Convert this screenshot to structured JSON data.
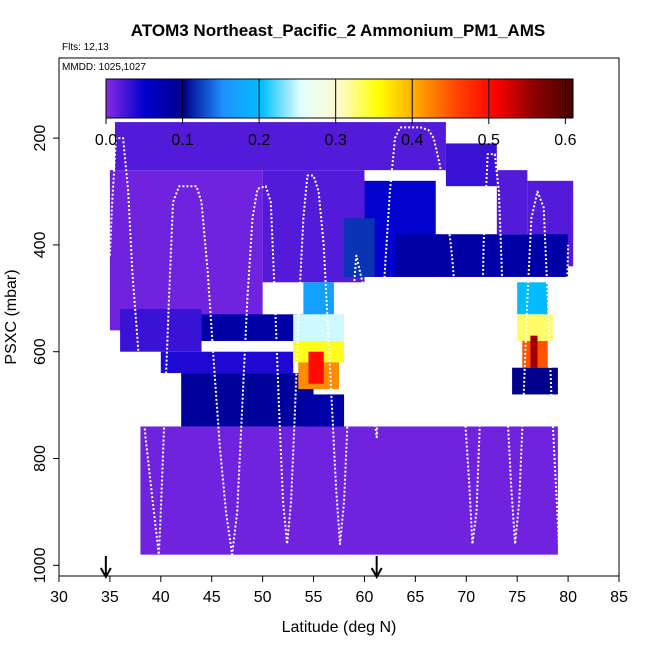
{
  "chart_data": {
    "type": "heatmap",
    "title": "ATOM3 Northeast_Pacific_2 Ammonium_PM1_AMS",
    "flights_label": "Flts: 12,13",
    "mmdd_label": "MMDD: 1025,1027",
    "xlabel": "Latitude (deg N)",
    "ylabel": "PSXC (mbar)",
    "xlim": [
      30,
      85
    ],
    "ylim": [
      1020,
      50
    ],
    "x_ticks": [
      "30",
      "35",
      "40",
      "45",
      "50",
      "55",
      "60",
      "65",
      "70",
      "75",
      "80",
      "85"
    ],
    "x_tick_values": [
      30,
      35,
      40,
      45,
      50,
      55,
      60,
      65,
      70,
      75,
      80,
      85
    ],
    "y_ticks": [
      "200",
      "400",
      "600",
      "800",
      "1000"
    ],
    "y_tick_values": [
      200,
      400,
      600,
      800,
      1000
    ],
    "colorbar": {
      "min": 0.0,
      "max": 0.61,
      "ticks": [
        "0.0",
        "0.1",
        "0.2",
        "0.3",
        "0.4",
        "0.5",
        "0.6"
      ],
      "tick_values": [
        0.0,
        0.1,
        0.2,
        0.3,
        0.4,
        0.5,
        0.6
      ],
      "colors": [
        "#8a2be2",
        "#0000cd",
        "#00008b",
        "#1e90ff",
        "#00bfff",
        "#e0ffff",
        "#fffacd",
        "#ffff00",
        "#ffa500",
        "#ff4500",
        "#ff0000",
        "#8b0000",
        "#4b0000"
      ]
    },
    "marker_arrows_lat": [
      34.6,
      61.2
    ],
    "cells": [
      {
        "lat0": 35.5,
        "lat1": 68.0,
        "p0": 170,
        "p1": 260,
        "v": 0.02
      },
      {
        "lat0": 68.0,
        "lat1": 73.0,
        "p0": 210,
        "p1": 290,
        "v": 0.03
      },
      {
        "lat0": 73.0,
        "lat1": 76.0,
        "p0": 260,
        "p1": 380,
        "v": 0.02
      },
      {
        "lat0": 76.0,
        "lat1": 80.5,
        "p0": 280,
        "p1": 440,
        "v": 0.02
      },
      {
        "lat0": 35.0,
        "lat1": 50.0,
        "p0": 260,
        "p1": 560,
        "v": 0.01
      },
      {
        "lat0": 50.0,
        "lat1": 60.0,
        "p0": 260,
        "p1": 470,
        "v": 0.02
      },
      {
        "lat0": 60.0,
        "lat1": 67.0,
        "p0": 280,
        "p1": 460,
        "v": 0.05
      },
      {
        "lat0": 63.0,
        "lat1": 80.0,
        "p0": 380,
        "p1": 460,
        "v": 0.08
      },
      {
        "lat0": 58.0,
        "lat1": 61.0,
        "p0": 350,
        "p1": 460,
        "v": 0.12
      },
      {
        "lat0": 36.0,
        "lat1": 44.0,
        "p0": 520,
        "p1": 600,
        "v": 0.03
      },
      {
        "lat0": 44.0,
        "lat1": 55.0,
        "p0": 530,
        "p1": 580,
        "v": 0.08
      },
      {
        "lat0": 40.0,
        "lat1": 53.0,
        "p0": 600,
        "p1": 640,
        "v": 0.04
      },
      {
        "lat0": 42.0,
        "lat1": 55.0,
        "p0": 640,
        "p1": 740,
        "v": 0.09
      },
      {
        "lat0": 54.0,
        "lat1": 58.0,
        "p0": 680,
        "p1": 800,
        "v": 0.08
      },
      {
        "lat0": 38.0,
        "lat1": 79.0,
        "p0": 740,
        "p1": 980,
        "v": 0.01
      },
      {
        "lat0": 54.0,
        "lat1": 57.0,
        "p0": 470,
        "p1": 530,
        "v": 0.17
      },
      {
        "lat0": 53.0,
        "lat1": 58.0,
        "p0": 530,
        "p1": 580,
        "v": 0.25
      },
      {
        "lat0": 53.0,
        "lat1": 58.0,
        "p0": 580,
        "p1": 620,
        "v": 0.35
      },
      {
        "lat0": 53.5,
        "lat1": 57.5,
        "p0": 620,
        "p1": 670,
        "v": 0.42
      },
      {
        "lat0": 54.5,
        "lat1": 56.0,
        "p0": 600,
        "p1": 660,
        "v": 0.5
      },
      {
        "lat0": 75.0,
        "lat1": 78.0,
        "p0": 470,
        "p1": 530,
        "v": 0.2
      },
      {
        "lat0": 75.0,
        "lat1": 78.5,
        "p0": 530,
        "p1": 580,
        "v": 0.33
      },
      {
        "lat0": 75.5,
        "lat1": 78.0,
        "p0": 580,
        "p1": 630,
        "v": 0.45
      },
      {
        "lat0": 76.3,
        "lat1": 77.0,
        "p0": 570,
        "p1": 630,
        "v": 0.55
      },
      {
        "lat0": 74.5,
        "lat1": 79.0,
        "p0": 630,
        "p1": 680,
        "v": 0.1
      }
    ],
    "flight_track": [
      [
        35.0,
        420
      ],
      [
        35.2,
        330
      ],
      [
        35.6,
        200
      ],
      [
        36.3,
        200
      ],
      [
        36.8,
        300
      ],
      [
        37.2,
        450
      ],
      [
        37.8,
        600
      ],
      [
        38.5,
        760
      ],
      [
        39.2,
        880
      ],
      [
        39.8,
        980
      ],
      [
        40.0,
        900
      ],
      [
        40.4,
        700
      ],
      [
        40.8,
        500
      ],
      [
        41.2,
        320
      ],
      [
        41.8,
        290
      ],
      [
        42.8,
        290
      ],
      [
        43.5,
        290
      ],
      [
        44.0,
        320
      ],
      [
        44.6,
        450
      ],
      [
        45.2,
        620
      ],
      [
        45.8,
        780
      ],
      [
        46.4,
        900
      ],
      [
        47.0,
        980
      ],
      [
        47.5,
        900
      ],
      [
        48.0,
        700
      ],
      [
        48.5,
        500
      ],
      [
        49.0,
        350
      ],
      [
        49.5,
        295
      ],
      [
        50.3,
        290
      ],
      [
        50.8,
        320
      ],
      [
        51.2,
        500
      ],
      [
        51.6,
        700
      ],
      [
        52.0,
        880
      ],
      [
        52.4,
        960
      ],
      [
        52.8,
        880
      ],
      [
        53.2,
        700
      ],
      [
        53.6,
        500
      ],
      [
        54.0,
        350
      ],
      [
        54.4,
        270
      ],
      [
        55.0,
        270
      ],
      [
        55.5,
        300
      ],
      [
        56.0,
        400
      ],
      [
        56.4,
        550
      ],
      [
        56.8,
        700
      ],
      [
        57.2,
        850
      ],
      [
        57.6,
        960
      ],
      [
        58.0,
        880
      ],
      [
        58.4,
        700
      ],
      [
        58.8,
        520
      ],
      [
        59.2,
        420
      ],
      [
        59.8,
        470
      ],
      [
        60.3,
        600
      ],
      [
        60.8,
        700
      ],
      [
        61.2,
        760
      ],
      [
        61.6,
        600
      ],
      [
        62.0,
        450
      ],
      [
        62.5,
        300
      ],
      [
        63.0,
        200
      ],
      [
        63.5,
        180
      ],
      [
        64.5,
        180
      ],
      [
        65.5,
        180
      ],
      [
        66.3,
        185
      ],
      [
        66.8,
        200
      ],
      [
        67.4,
        250
      ],
      [
        68.0,
        320
      ],
      [
        68.6,
        420
      ],
      [
        69.2,
        560
      ],
      [
        69.8,
        700
      ],
      [
        70.3,
        850
      ],
      [
        70.6,
        960
      ],
      [
        71.0,
        900
      ],
      [
        71.4,
        700
      ],
      [
        71.7,
        400
      ],
      [
        72.1,
        230
      ],
      [
        72.8,
        230
      ],
      [
        73.2,
        300
      ],
      [
        73.6,
        500
      ],
      [
        74.0,
        700
      ],
      [
        74.4,
        850
      ],
      [
        74.8,
        960
      ],
      [
        75.2,
        880
      ],
      [
        75.6,
        700
      ],
      [
        76.0,
        500
      ],
      [
        76.4,
        350
      ],
      [
        77.0,
        300
      ],
      [
        77.6,
        330
      ],
      [
        78.0,
        500
      ],
      [
        78.4,
        700
      ],
      [
        78.8,
        850
      ],
      [
        79.1,
        960
      ],
      [
        79.4,
        850
      ],
      [
        79.7,
        650
      ],
      [
        80.0,
        400
      ]
    ]
  }
}
